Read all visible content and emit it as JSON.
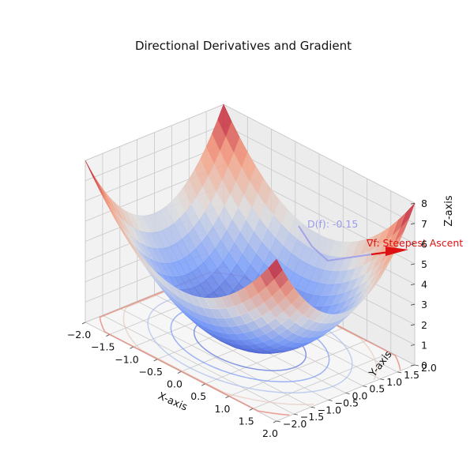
{
  "chart_data": {
    "type": "surface3d",
    "title": "Directional Derivatives and Gradient",
    "xlabel": "X-axis",
    "ylabel": "Y-axis",
    "zlabel": "Z-axis",
    "function": "z = x^2 + y^2",
    "xlim": [
      -2.0,
      2.0
    ],
    "ylim": [
      -2.0,
      2.0
    ],
    "zlim": [
      0,
      8
    ],
    "x_ticks": [
      "−2.0",
      "−1.5",
      "−1.0",
      "−0.5",
      "0.0",
      "0.5",
      "1.0",
      "1.5",
      "2.0"
    ],
    "y_ticks": [
      "−2.0",
      "−1.5",
      "−1.0",
      "−0.5",
      "0.0",
      "0.5",
      "1.0",
      "1.5",
      "2.0"
    ],
    "z_ticks": [
      "0",
      "1",
      "2",
      "3",
      "4",
      "5",
      "6",
      "7",
      "8"
    ],
    "x_tick_values": [
      -2.0,
      -1.5,
      -1.0,
      -0.5,
      0.0,
      0.5,
      1.0,
      1.5,
      2.0
    ],
    "y_tick_values": [
      -2.0,
      -1.5,
      -1.0,
      -0.5,
      0.0,
      0.5,
      1.0,
      1.5,
      2.0
    ],
    "z_tick_values": [
      0,
      1,
      2,
      3,
      4,
      5,
      6,
      7,
      8
    ],
    "colormap": "coolwarm",
    "contour_levels": [
      0.9,
      1.8,
      3.0,
      4.6,
      6.5
    ],
    "grid": true,
    "annotations": [
      {
        "name": "directional-derivative",
        "text": "D(f): -0.15",
        "color": "#9a9ae8"
      },
      {
        "name": "gradient",
        "text": "∇f: Steepest Ascent",
        "color": "#dd1111"
      }
    ]
  }
}
